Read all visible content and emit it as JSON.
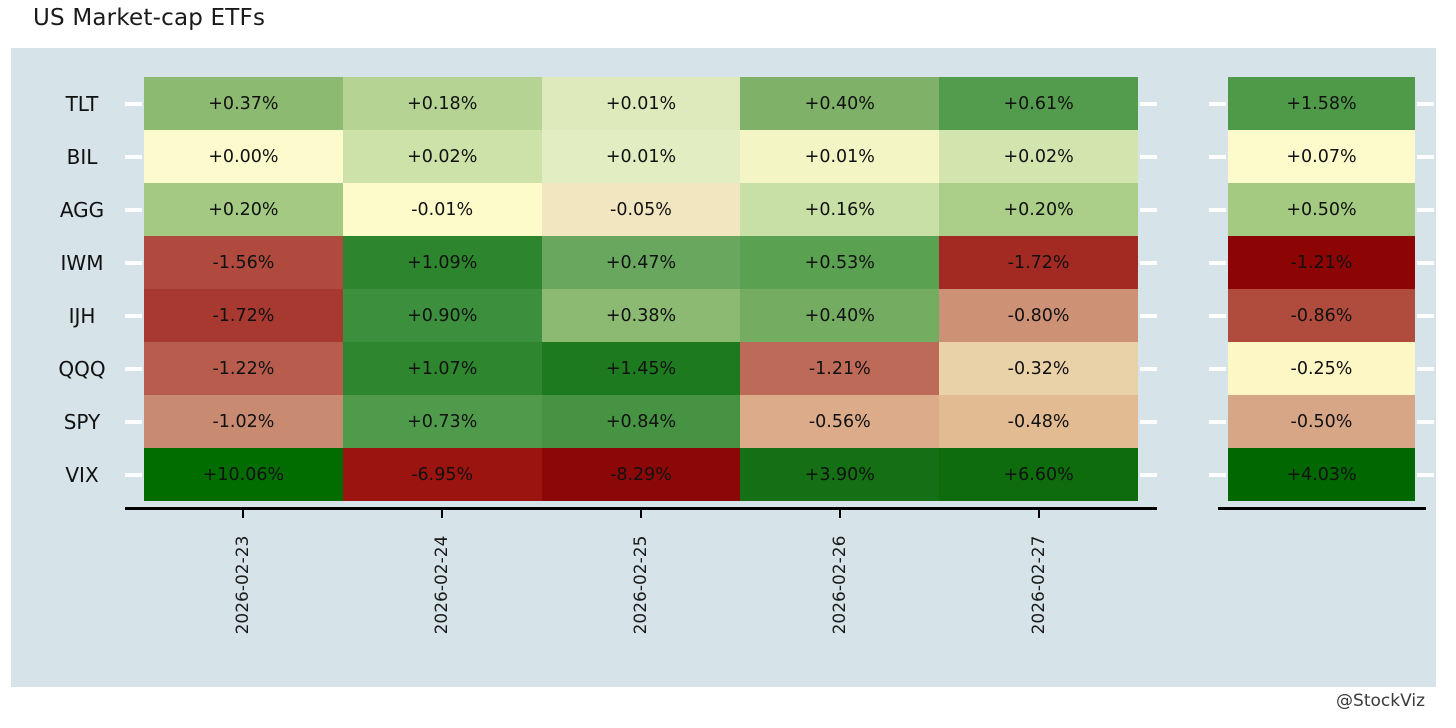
{
  "title": "US Market-cap ETFs",
  "credit": "@StockViz",
  "colors": {
    "panel_background": "#d6e3e9",
    "axis_line": "#000000",
    "row_tick_dash": "#ffffff",
    "text": "#1a1a1a",
    "positive_extreme": "#016701",
    "negative_extreme": "#8c0404",
    "neutral": "#fdfacd"
  },
  "chart_data": {
    "type": "heatmap",
    "title": "US Market-cap ETFs",
    "colormap": "red-yellow-green diverging (red = negative, pale yellow = ~0, green = positive)",
    "rows": [
      "TLT",
      "BIL",
      "AGG",
      "IWM",
      "IJH",
      "QQQ",
      "SPY",
      "VIX"
    ],
    "columns": [
      "2026-02-23",
      "2026-02-24",
      "2026-02-25",
      "2026-02-26",
      "2026-02-27"
    ],
    "values": [
      [
        0.37,
        0.18,
        0.01,
        0.4,
        0.61
      ],
      [
        0.0,
        0.02,
        0.01,
        0.01,
        0.02
      ],
      [
        0.2,
        -0.01,
        -0.05,
        0.16,
        0.2
      ],
      [
        -1.56,
        1.09,
        0.47,
        0.53,
        -1.72
      ],
      [
        -1.72,
        0.9,
        0.38,
        0.4,
        -0.8
      ],
      [
        -1.22,
        1.07,
        1.45,
        -1.21,
        -0.32
      ],
      [
        -1.02,
        0.73,
        0.84,
        -0.56,
        -0.48
      ],
      [
        10.06,
        -6.95,
        -8.29,
        3.9,
        6.6
      ]
    ],
    "labels": [
      [
        "+0.37%",
        "+0.18%",
        "+0.01%",
        "+0.40%",
        "+0.61%"
      ],
      [
        "+0.00%",
        "+0.02%",
        "+0.01%",
        "+0.01%",
        "+0.02%"
      ],
      [
        "+0.20%",
        "-0.01%",
        "-0.05%",
        "+0.16%",
        "+0.20%"
      ],
      [
        "-1.56%",
        "+1.09%",
        "+0.47%",
        "+0.53%",
        "-1.72%"
      ],
      [
        "-1.72%",
        "+0.90%",
        "+0.38%",
        "+0.40%",
        "-0.80%"
      ],
      [
        "-1.22%",
        "+1.07%",
        "+1.45%",
        "-1.21%",
        "-0.32%"
      ],
      [
        "-1.02%",
        "+0.73%",
        "+0.84%",
        "-0.56%",
        "-0.48%"
      ],
      [
        "+10.06%",
        "-6.95%",
        "-8.29%",
        "+3.90%",
        "+6.60%"
      ]
    ],
    "cell_colors": [
      [
        "#8dba71",
        "#b5d494",
        "#dfeabc",
        "#7fb268",
        "#549c4d"
      ],
      [
        "#fdfacd",
        "#cde2a9",
        "#e3edc2",
        "#f3f5c5",
        "#d3e5af"
      ],
      [
        "#a3c983",
        "#fdfbc9",
        "#f2e6c0",
        "#c8dfa5",
        "#abce88"
      ],
      [
        "#b04a3e",
        "#2d862d",
        "#69a65e",
        "#5ba152",
        "#a32a22"
      ],
      [
        "#a73931",
        "#3c8f3c",
        "#8cba72",
        "#74ad62",
        "#cd9176"
      ],
      [
        "#b85c4d",
        "#2e872e",
        "#1e7a1e",
        "#bd6a58",
        "#ead2a8"
      ],
      [
        "#c98a72",
        "#4f9b4b",
        "#459343",
        "#dcab8a",
        "#e2bb92"
      ],
      [
        "#016d01",
        "#9c1410",
        "#8c0808",
        "#156f15",
        "#0e6c0c"
      ]
    ],
    "summary_column": {
      "values": [
        1.58,
        0.07,
        0.5,
        -1.21,
        -0.86,
        -0.25,
        -0.5,
        4.03
      ],
      "labels": [
        "+1.58%",
        "+0.07%",
        "+0.50%",
        "-1.21%",
        "-0.86%",
        "-0.25%",
        "-0.50%",
        "+4.03%"
      ],
      "colors": [
        "#4f9a48",
        "#fdfacc",
        "#a4ca82",
        "#8c0404",
        "#b04c3e",
        "#fcf7c4",
        "#d7a686",
        "#016701"
      ]
    },
    "layout": {
      "grid": "off",
      "legend": "none",
      "x_tick_label_rotation_deg": 90,
      "row_count": 8,
      "column_count": 5,
      "summary_column_count": 1
    }
  }
}
